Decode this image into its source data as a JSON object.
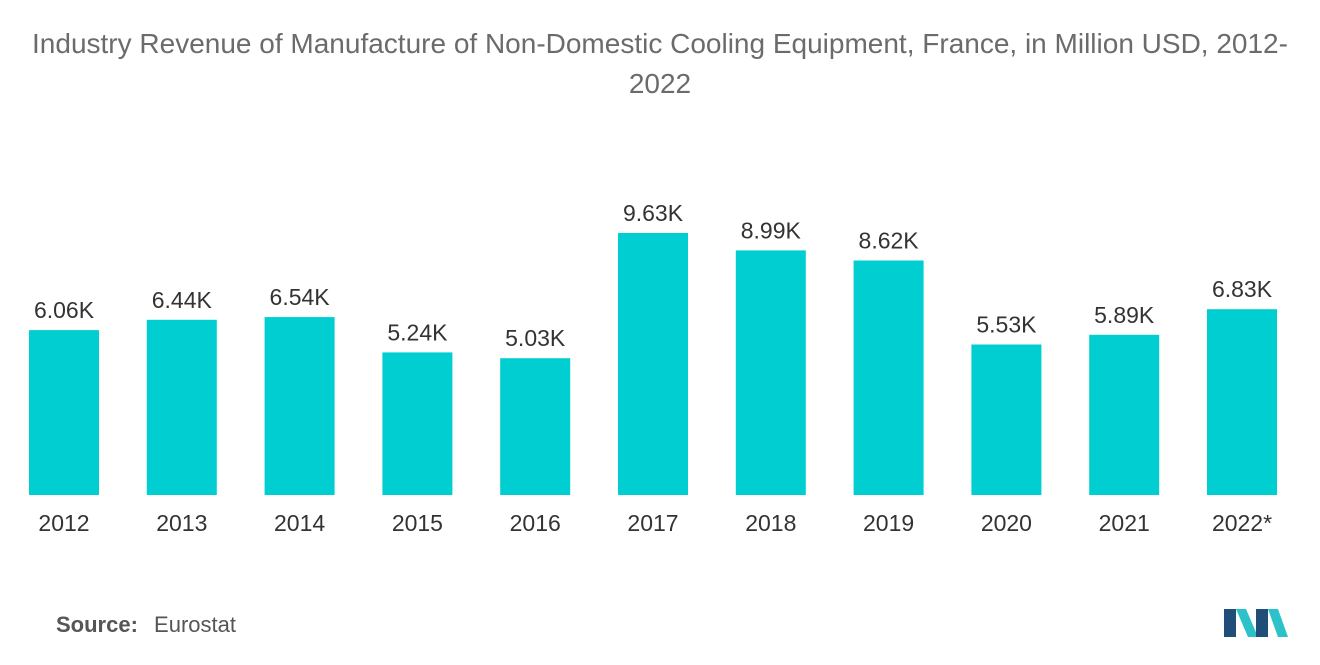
{
  "title": "Industry Revenue of Manufacture of Non-Domestic Cooling Equipment, France, in Million USD, 2012-2022",
  "source": {
    "label": "Source:",
    "value": "Eurostat"
  },
  "colors": {
    "bar": "#00CED1",
    "logo_dark": "#1f4e79",
    "logo_light": "#2bc3c9"
  },
  "chart_data": {
    "type": "bar",
    "categories": [
      "2012",
      "2013",
      "2014",
      "2015",
      "2016",
      "2017",
      "2018",
      "2019",
      "2020",
      "2021",
      "2022*"
    ],
    "values": [
      6.06,
      6.44,
      6.54,
      5.24,
      5.03,
      9.63,
      8.99,
      8.62,
      5.53,
      5.89,
      6.83
    ],
    "value_labels": [
      "6.06K",
      "6.44K",
      "6.54K",
      "5.24K",
      "5.03K",
      "9.63K",
      "8.99K",
      "8.62K",
      "5.53K",
      "5.89K",
      "6.83K"
    ],
    "unit": "K",
    "ylim": [
      0,
      9.63
    ],
    "grid": false,
    "legend": "none"
  }
}
